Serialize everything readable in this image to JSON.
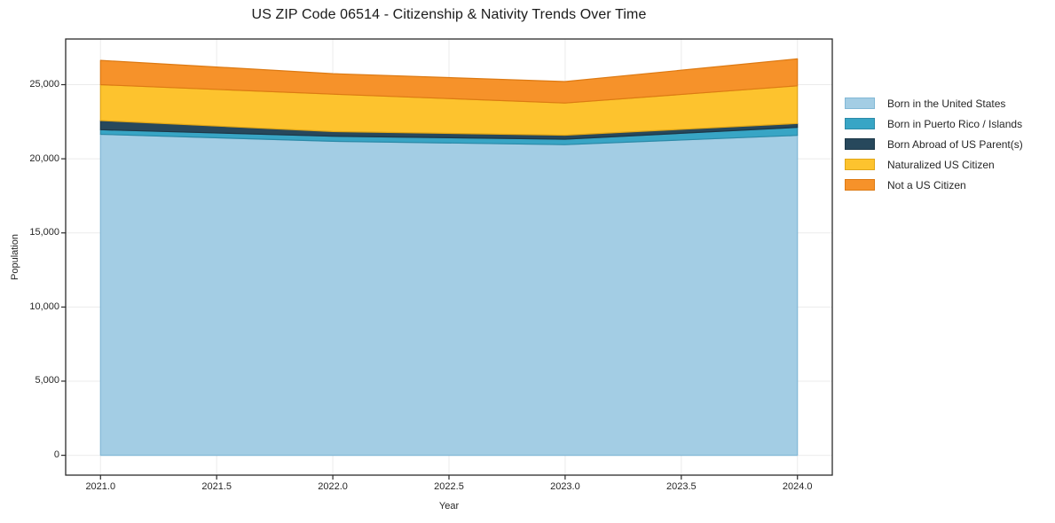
{
  "chart_data": {
    "type": "area",
    "title": "US ZIP Code 06514 - Citizenship & Nativity Trends Over Time",
    "xlabel": "Year",
    "ylabel": "Population",
    "x": [
      2021,
      2022,
      2023,
      2024
    ],
    "series": [
      {
        "name": "Born in the United States",
        "color": "#a3cde4",
        "edge_color": "#82b8d6",
        "values": [
          21650,
          21180,
          20950,
          21580
        ]
      },
      {
        "name": "Born in Puerto Rico / Islands",
        "color": "#38a5c5",
        "edge_color": "#2b8aa8",
        "values": [
          310,
          340,
          370,
          540
        ]
      },
      {
        "name": "Born Abroad of US Parent(s)",
        "color": "#27485c",
        "edge_color": "#1c3747",
        "values": [
          620,
          320,
          270,
          260
        ]
      },
      {
        "name": "Naturalized US Citizen",
        "color": "#fdc32e",
        "edge_color": "#e0a617",
        "values": [
          2420,
          2520,
          2170,
          2540
        ]
      },
      {
        "name": "Not a US Citizen",
        "color": "#f6922a",
        "edge_color": "#dd7a13",
        "values": [
          1640,
          1380,
          1450,
          1820
        ]
      }
    ],
    "xlim": [
      2020.85,
      2024.15
    ],
    "ylim": [
      -1340,
      28080
    ],
    "xticks": {
      "values": [
        2021.0,
        2021.5,
        2022.0,
        2022.5,
        2023.0,
        2023.5,
        2024.0
      ],
      "labels": [
        "2021.0",
        "2021.5",
        "2022.0",
        "2022.5",
        "2023.0",
        "2023.5",
        "2024.0"
      ]
    },
    "yticks": {
      "values": [
        0,
        5000,
        10000,
        15000,
        20000,
        25000
      ],
      "labels": [
        "0",
        "5,000",
        "10,000",
        "15,000",
        "20,000",
        "25,000"
      ]
    },
    "grid": true,
    "legend_position": "outside-right",
    "frame_color": "#2b2b2b",
    "grid_color": "#ebebeb",
    "tick_color": "#2b2b2b",
    "text_color": "#262626"
  }
}
